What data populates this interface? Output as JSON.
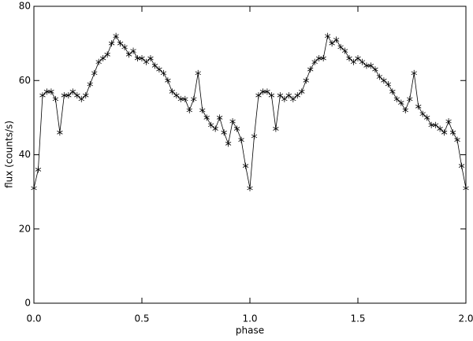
{
  "chart_data": {
    "type": "scatter",
    "xlabel": "phase",
    "ylabel": "flux (counts/s)",
    "x": [
      0.0,
      0.02,
      0.04,
      0.06,
      0.08,
      0.1,
      0.12,
      0.14,
      0.16,
      0.18,
      0.2,
      0.22,
      0.24,
      0.26,
      0.28,
      0.3,
      0.32,
      0.34,
      0.36,
      0.38,
      0.4,
      0.42,
      0.44,
      0.46,
      0.48,
      0.5,
      0.52,
      0.54,
      0.56,
      0.58,
      0.6,
      0.62,
      0.64,
      0.66,
      0.68,
      0.7,
      0.72,
      0.74,
      0.76,
      0.78,
      0.8,
      0.82,
      0.84,
      0.86,
      0.88,
      0.9,
      0.92,
      0.94,
      0.96,
      0.98,
      1.0,
      1.02,
      1.04,
      1.06,
      1.08,
      1.1,
      1.12,
      1.14,
      1.16,
      1.18,
      1.2,
      1.22,
      1.24,
      1.26,
      1.28,
      1.3,
      1.32,
      1.34,
      1.36,
      1.38,
      1.4,
      1.42,
      1.44,
      1.46,
      1.48,
      1.5,
      1.52,
      1.54,
      1.56,
      1.58,
      1.6,
      1.62,
      1.64,
      1.66,
      1.68,
      1.7,
      1.72,
      1.74,
      1.76,
      1.78,
      1.8,
      1.82,
      1.84,
      1.86,
      1.88,
      1.9,
      1.92,
      1.94,
      1.96,
      1.98,
      2.0
    ],
    "series": [
      {
        "color": "#000000",
        "values": [
          31,
          36,
          56,
          57,
          57,
          55,
          46,
          56,
          56,
          57,
          56,
          55,
          56,
          59,
          62,
          65,
          66,
          67,
          70,
          72,
          70,
          69,
          67,
          68,
          66,
          66,
          65,
          66,
          64,
          63,
          62,
          60,
          57,
          56,
          55,
          55,
          52,
          55,
          62,
          52,
          50,
          48,
          47,
          50,
          46,
          43,
          49,
          47,
          44,
          37,
          31,
          45,
          56,
          57,
          57,
          56,
          47,
          56,
          55,
          56,
          55,
          56,
          57,
          60,
          63,
          65,
          66,
          66,
          72,
          70,
          71,
          69,
          68,
          66,
          65,
          66,
          65,
          64,
          64,
          63,
          61,
          60,
          59,
          57,
          55,
          54,
          52,
          55,
          62,
          53,
          51,
          50,
          48,
          48,
          47,
          46,
          49,
          46,
          44,
          37,
          31
        ]
      }
    ],
    "xlim": [
      0,
      2
    ],
    "ylim": [
      0,
      80
    ],
    "xticks": [
      {
        "value": 0,
        "label": "0.0"
      },
      0.5,
      {
        "value": 1,
        "label": "1.0"
      },
      1.5,
      {
        "value": 2,
        "label": "2.0"
      }
    ],
    "yticks": [
      0,
      20,
      40,
      60,
      80
    ],
    "grid": false
  }
}
